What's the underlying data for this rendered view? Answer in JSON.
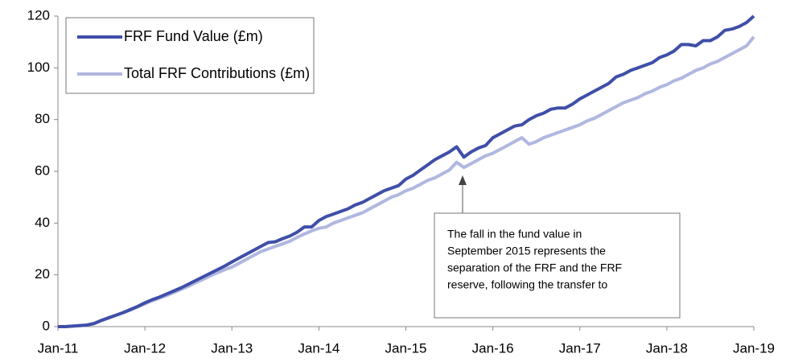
{
  "chart_data": {
    "type": "line",
    "categories": [
      "Jan-11",
      null,
      null,
      null,
      null,
      null,
      null,
      null,
      null,
      null,
      null,
      null,
      "Jan-12",
      null,
      null,
      null,
      null,
      null,
      null,
      null,
      null,
      null,
      null,
      null,
      "Jan-13",
      null,
      null,
      null,
      null,
      null,
      null,
      null,
      null,
      null,
      null,
      null,
      "Jan-14",
      null,
      null,
      null,
      null,
      null,
      null,
      null,
      null,
      null,
      null,
      null,
      "Jan-15",
      null,
      null,
      null,
      null,
      null,
      null,
      null,
      null,
      null,
      null,
      null,
      "Jan-16",
      null,
      null,
      null,
      null,
      null,
      null,
      null,
      null,
      null,
      null,
      null,
      "Jan-17",
      null,
      null,
      null,
      null,
      null,
      null,
      null,
      null,
      null,
      null,
      null,
      "Jan-18",
      null,
      null,
      null,
      null,
      null,
      null,
      null,
      null,
      null,
      null,
      null,
      "Jan-19"
    ],
    "series": [
      {
        "name": "FRF Fund Value (£m)",
        "color": "#3f4fa8",
        "values": [
          0,
          0,
          0.2,
          0.4,
          0.6,
          1.2,
          2.4,
          3.4,
          4.4,
          5.4,
          6.6,
          7.8,
          9.2,
          10.4,
          11.4,
          12.6,
          13.8,
          15,
          16.4,
          17.8,
          19.2,
          20.6,
          22,
          23.4,
          25,
          26.5,
          28,
          29.5,
          31,
          32.5,
          32.8,
          34,
          35,
          36.5,
          38.5,
          38.5,
          41,
          42.5,
          43.5,
          44.5,
          45.5,
          47,
          48,
          49.5,
          51,
          52.5,
          53.5,
          54.5,
          57,
          58.5,
          60.5,
          62.5,
          64.5,
          66,
          67.5,
          69.5,
          65.5,
          67.5,
          69,
          70,
          73,
          74.5,
          76,
          77.5,
          78,
          80,
          81.5,
          82.5,
          84,
          84.5,
          84.5,
          86,
          88,
          89.5,
          91,
          92.5,
          94,
          96.5,
          97.5,
          99,
          100,
          101,
          102,
          104,
          105,
          106.5,
          109,
          109,
          108.5,
          110.5,
          110.5,
          112,
          114.5,
          115,
          116,
          117.5,
          120
        ]
      },
      {
        "name": "Total FRF Contributions (£m)",
        "color": "#b0b7e0",
        "values": [
          0,
          0,
          0.2,
          0.4,
          0.6,
          1.2,
          2.4,
          3.4,
          4.4,
          5.4,
          6.4,
          7.6,
          8.8,
          10,
          11,
          12,
          13.2,
          14.4,
          15.6,
          17,
          18.2,
          19.6,
          20.8,
          22,
          23,
          24.5,
          26,
          27.5,
          29,
          30,
          31,
          32,
          33,
          34.5,
          35.8,
          37,
          38,
          38.5,
          40,
          41,
          42,
          43,
          44,
          45.5,
          47,
          48.5,
          50,
          51,
          52.5,
          53.5,
          55,
          56.5,
          57.5,
          59,
          60.5,
          63.5,
          61.5,
          63,
          64.5,
          66,
          67,
          68.5,
          70,
          71.5,
          73,
          70.5,
          71.5,
          73,
          74,
          75,
          76,
          77,
          78,
          79.5,
          80.5,
          82,
          83.5,
          85,
          86.5,
          87.5,
          88.5,
          90,
          91,
          92.5,
          93.5,
          95,
          96,
          97.5,
          99,
          100,
          101.5,
          102.5,
          104,
          105.5,
          107,
          108.5,
          112
        ]
      }
    ],
    "ylim": [
      0,
      120
    ],
    "yticks": [
      0,
      20,
      40,
      60,
      80,
      100,
      120
    ],
    "grid": false,
    "legend": "top-left",
    "annotation": [
      "The fall in the fund value in",
      "September 2015 represents the",
      "separation of the FRF and the FRF",
      "reserve, following the transfer to"
    ]
  }
}
